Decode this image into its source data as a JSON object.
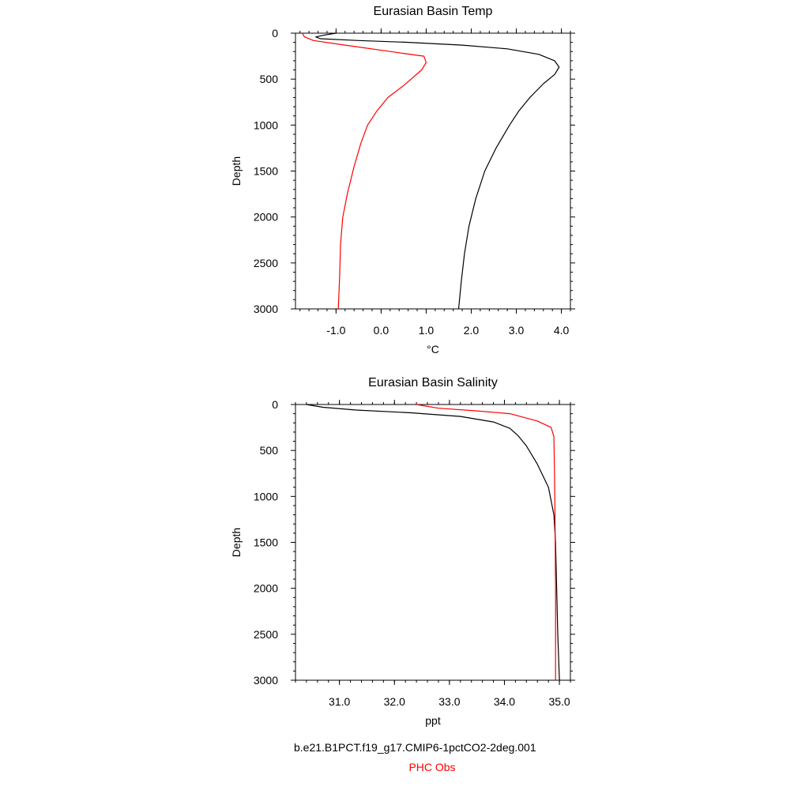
{
  "chart_data": [
    {
      "type": "line",
      "title": "Eurasian Basin Temp",
      "xlabel": "°C",
      "ylabel": "Depth",
      "xlim": [
        -1.9,
        4.2
      ],
      "ylim": [
        3000,
        0
      ],
      "x_ticks": [
        "-1.0",
        "0.0",
        "1.0",
        "2.0",
        "3.0",
        "4.0"
      ],
      "x_tick_values": [
        -1,
        0,
        1,
        2,
        3,
        4
      ],
      "y_ticks": [
        "0",
        "500",
        "1000",
        "1500",
        "2000",
        "2500",
        "3000"
      ],
      "y_tick_values": [
        0,
        500,
        1000,
        1500,
        2000,
        2500,
        3000
      ],
      "series": [
        {
          "color": "#000000",
          "points": [
            [
              -1.0,
              0
            ],
            [
              -1.25,
              20
            ],
            [
              -1.45,
              40
            ],
            [
              -1.35,
              60
            ],
            [
              -0.5,
              80
            ],
            [
              0.6,
              100
            ],
            [
              1.8,
              130
            ],
            [
              2.8,
              170
            ],
            [
              3.5,
              230
            ],
            [
              3.85,
              300
            ],
            [
              3.95,
              370
            ],
            [
              3.85,
              450
            ],
            [
              3.6,
              550
            ],
            [
              3.3,
              700
            ],
            [
              3.05,
              850
            ],
            [
              2.85,
              1000
            ],
            [
              2.55,
              1250
            ],
            [
              2.3,
              1500
            ],
            [
              2.1,
              1800
            ],
            [
              1.95,
              2100
            ],
            [
              1.85,
              2400
            ],
            [
              1.78,
              2700
            ],
            [
              1.72,
              3000
            ]
          ]
        },
        {
          "color": "#ff0000",
          "points": [
            [
              -1.75,
              0
            ],
            [
              -1.7,
              40
            ],
            [
              -1.5,
              80
            ],
            [
              -0.8,
              130
            ],
            [
              0.5,
              220
            ],
            [
              0.95,
              250
            ],
            [
              1.0,
              320
            ],
            [
              0.9,
              400
            ],
            [
              0.5,
              570
            ],
            [
              0.15,
              700
            ],
            [
              -0.1,
              850
            ],
            [
              -0.3,
              1000
            ],
            [
              -0.45,
              1200
            ],
            [
              -0.6,
              1450
            ],
            [
              -0.75,
              1750
            ],
            [
              -0.85,
              2000
            ],
            [
              -0.9,
              2300
            ],
            [
              -0.92,
              2650
            ],
            [
              -0.95,
              3000
            ]
          ]
        }
      ]
    },
    {
      "type": "line",
      "title": "Eurasian Basin Salinity",
      "xlabel": "ppt",
      "ylabel": "Depth",
      "xlim": [
        30.2,
        35.2
      ],
      "ylim": [
        3000,
        0
      ],
      "x_ticks": [
        "31.0",
        "32.0",
        "33.0",
        "34.0",
        "35.0"
      ],
      "x_tick_values": [
        31,
        32,
        33,
        34,
        35
      ],
      "y_ticks": [
        "0",
        "500",
        "1000",
        "1500",
        "2000",
        "2500",
        "3000"
      ],
      "y_tick_values": [
        0,
        500,
        1000,
        1500,
        2000,
        2500,
        3000
      ],
      "series": [
        {
          "color": "#000000",
          "points": [
            [
              30.4,
              0
            ],
            [
              30.7,
              30
            ],
            [
              31.3,
              60
            ],
            [
              32.3,
              90
            ],
            [
              33.2,
              130
            ],
            [
              33.8,
              190
            ],
            [
              34.1,
              260
            ],
            [
              34.25,
              340
            ],
            [
              34.4,
              450
            ],
            [
              34.6,
              650
            ],
            [
              34.8,
              900
            ],
            [
              34.9,
              1200
            ],
            [
              34.93,
              1500
            ],
            [
              34.95,
              2000
            ],
            [
              34.97,
              2500
            ],
            [
              35.0,
              3000
            ]
          ]
        },
        {
          "color": "#ff0000",
          "points": [
            [
              32.4,
              0
            ],
            [
              32.8,
              40
            ],
            [
              33.5,
              70
            ],
            [
              34.1,
              100
            ],
            [
              34.6,
              180
            ],
            [
              34.85,
              250
            ],
            [
              34.9,
              350
            ],
            [
              34.91,
              700
            ],
            [
              34.92,
              1200
            ],
            [
              34.93,
              2000
            ],
            [
              34.93,
              3000
            ]
          ]
        }
      ]
    }
  ],
  "legend": {
    "series1": "b.e21.B1PCT.f19_g17.CMIP6-1pctCO2-2deg.001",
    "series2": "PHC Obs",
    "color1": "#000000",
    "color2": "#ff0000"
  }
}
